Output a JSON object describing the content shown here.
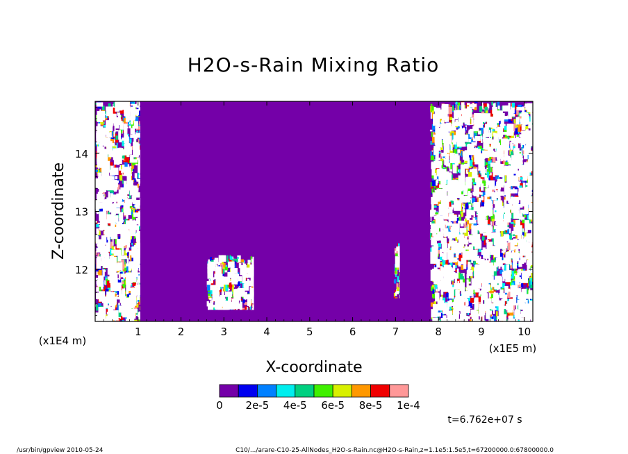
{
  "chart_data": {
    "type": "heatmap",
    "title": "H2O-s-Rain Mixing Ratio",
    "xlabel": "X-coordinate",
    "ylabel": "Z-coordinate",
    "x_multiplier": "(x1E5 m)",
    "y_multiplier": "(x1E4 m)",
    "xlim": [
      0.0,
      10.2
    ],
    "ylim": [
      11.1,
      14.9
    ],
    "x_ticks": [
      "1",
      "2",
      "3",
      "4",
      "5",
      "6",
      "7",
      "8",
      "9",
      "10"
    ],
    "y_ticks": [
      "12",
      "13",
      "14"
    ],
    "background_value": 0,
    "colorbar": {
      "colors": [
        "#7400a8",
        "#0000f0",
        "#0080ff",
        "#00eeee",
        "#00d080",
        "#40f000",
        "#d8f000",
        "#ff9800",
        "#f00000",
        "#ff9898"
      ],
      "labels": [
        "0",
        "2e-5",
        "4e-5",
        "6e-5",
        "8e-5",
        "1e-4"
      ],
      "range": [
        0,
        0.0001
      ]
    },
    "time_label": "t=6.762e+07 s",
    "regions": [
      {
        "name": "left-band",
        "x": [
          0.0,
          1.05
        ],
        "z": [
          11.1,
          14.9
        ],
        "value": "high"
      },
      {
        "name": "mid-low-cluster",
        "x": [
          2.6,
          3.7
        ],
        "z": [
          11.3,
          12.25
        ],
        "value": "high"
      },
      {
        "name": "isolated-near-7",
        "x": [
          6.95,
          7.1
        ],
        "z": [
          11.5,
          12.45
        ],
        "value": "medium"
      },
      {
        "name": "right-band",
        "x": [
          7.8,
          10.2
        ],
        "z": [
          11.1,
          14.9
        ],
        "value": "high"
      }
    ]
  },
  "footer": {
    "left": "/usr/bin/gpview  2010-05-24",
    "right": "C10/.../arare-C10-25-AllNodes_H2O-s-Rain.nc@H2O-s-Rain,z=1.1e5:1.5e5,t=67200000.0:67800000.0"
  }
}
